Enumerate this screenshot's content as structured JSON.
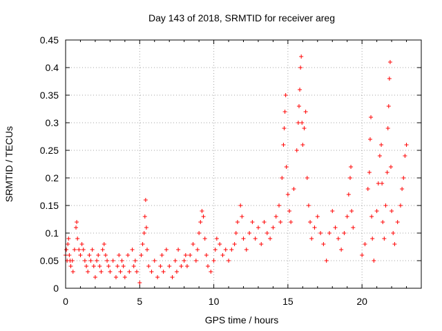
{
  "chart_data": {
    "type": "scatter",
    "title": "Day 143 of 2018, SRMTID for receiver areg",
    "xlabel": "GPS time / hours",
    "ylabel": "SRMTID / TECUs",
    "xlim": [
      0,
      24
    ],
    "ylim": [
      0,
      0.45
    ],
    "xticks": [
      0,
      5,
      10,
      15,
      20
    ],
    "xtick_labels": [
      "0",
      "5",
      "10",
      "15",
      "20"
    ],
    "yticks": [
      0,
      0.05,
      0.1,
      0.15,
      0.2,
      0.25,
      0.3,
      0.35,
      0.4,
      0.45
    ],
    "ytick_labels": [
      "0",
      "0.05",
      "0.1",
      "0.15",
      "0.2",
      "0.25",
      "0.3",
      "0.35",
      "0.4",
      "0.45"
    ],
    "grid": true,
    "marker": "+",
    "color": "#ff0000",
    "series": [
      {
        "name": "SRMTID",
        "points": [
          [
            0.0,
            0.06
          ],
          [
            0.05,
            0.07
          ],
          [
            0.1,
            0.05
          ],
          [
            0.15,
            0.08
          ],
          [
            0.2,
            0.09
          ],
          [
            0.25,
            0.06
          ],
          [
            0.3,
            0.05
          ],
          [
            0.35,
            0.04
          ],
          [
            0.45,
            0.05
          ],
          [
            0.5,
            0.03
          ],
          [
            0.6,
            0.07
          ],
          [
            0.7,
            0.11
          ],
          [
            0.75,
            0.12
          ],
          [
            0.8,
            0.09
          ],
          [
            0.9,
            0.07
          ],
          [
            1.0,
            0.06
          ],
          [
            1.1,
            0.08
          ],
          [
            1.2,
            0.07
          ],
          [
            1.3,
            0.05
          ],
          [
            1.4,
            0.04
          ],
          [
            1.5,
            0.03
          ],
          [
            1.6,
            0.06
          ],
          [
            1.7,
            0.05
          ],
          [
            1.8,
            0.07
          ],
          [
            1.9,
            0.04
          ],
          [
            2.0,
            0.02
          ],
          [
            2.1,
            0.05
          ],
          [
            2.2,
            0.06
          ],
          [
            2.3,
            0.04
          ],
          [
            2.4,
            0.03
          ],
          [
            2.5,
            0.07
          ],
          [
            2.6,
            0.08
          ],
          [
            2.7,
            0.06
          ],
          [
            2.8,
            0.05
          ],
          [
            2.9,
            0.04
          ],
          [
            3.0,
            0.03
          ],
          [
            3.2,
            0.05
          ],
          [
            3.4,
            0.02
          ],
          [
            3.5,
            0.04
          ],
          [
            3.6,
            0.06
          ],
          [
            3.7,
            0.03
          ],
          [
            3.8,
            0.05
          ],
          [
            3.9,
            0.04
          ],
          [
            4.0,
            0.02
          ],
          [
            4.2,
            0.06
          ],
          [
            4.3,
            0.03
          ],
          [
            4.5,
            0.07
          ],
          [
            4.6,
            0.04
          ],
          [
            4.7,
            0.05
          ],
          [
            4.8,
            0.03
          ],
          [
            5.0,
            0.01
          ],
          [
            5.1,
            0.06
          ],
          [
            5.2,
            0.08
          ],
          [
            5.3,
            0.1
          ],
          [
            5.35,
            0.13
          ],
          [
            5.4,
            0.16
          ],
          [
            5.45,
            0.11
          ],
          [
            5.5,
            0.07
          ],
          [
            5.6,
            0.04
          ],
          [
            5.8,
            0.03
          ],
          [
            6.0,
            0.05
          ],
          [
            6.2,
            0.02
          ],
          [
            6.4,
            0.04
          ],
          [
            6.5,
            0.06
          ],
          [
            6.6,
            0.03
          ],
          [
            6.8,
            0.07
          ],
          [
            7.0,
            0.04
          ],
          [
            7.2,
            0.02
          ],
          [
            7.4,
            0.05
          ],
          [
            7.5,
            0.03
          ],
          [
            7.6,
            0.07
          ],
          [
            7.8,
            0.04
          ],
          [
            8.0,
            0.05
          ],
          [
            8.1,
            0.06
          ],
          [
            8.2,
            0.04
          ],
          [
            8.4,
            0.06
          ],
          [
            8.6,
            0.08
          ],
          [
            8.8,
            0.05
          ],
          [
            8.9,
            0.07
          ],
          [
            9.0,
            0.1
          ],
          [
            9.1,
            0.12
          ],
          [
            9.2,
            0.14
          ],
          [
            9.3,
            0.13
          ],
          [
            9.4,
            0.09
          ],
          [
            9.5,
            0.06
          ],
          [
            9.6,
            0.04
          ],
          [
            9.8,
            0.03
          ],
          [
            10.0,
            0.05
          ],
          [
            10.1,
            0.07
          ],
          [
            10.2,
            0.09
          ],
          [
            10.4,
            0.08
          ],
          [
            10.6,
            0.06
          ],
          [
            10.8,
            0.07
          ],
          [
            11.0,
            0.05
          ],
          [
            11.2,
            0.07
          ],
          [
            11.4,
            0.08
          ],
          [
            11.5,
            0.1
          ],
          [
            11.6,
            0.12
          ],
          [
            11.8,
            0.15
          ],
          [
            11.9,
            0.13
          ],
          [
            12.0,
            0.09
          ],
          [
            12.2,
            0.07
          ],
          [
            12.4,
            0.1
          ],
          [
            12.6,
            0.12
          ],
          [
            12.8,
            0.09
          ],
          [
            13.0,
            0.11
          ],
          [
            13.2,
            0.08
          ],
          [
            13.4,
            0.12
          ],
          [
            13.6,
            0.1
          ],
          [
            13.8,
            0.09
          ],
          [
            14.0,
            0.11
          ],
          [
            14.2,
            0.13
          ],
          [
            14.4,
            0.15
          ],
          [
            14.5,
            0.12
          ],
          [
            14.6,
            0.2
          ],
          [
            14.7,
            0.26
          ],
          [
            14.75,
            0.29
          ],
          [
            14.8,
            0.32
          ],
          [
            14.85,
            0.35
          ],
          [
            14.9,
            0.22
          ],
          [
            15.0,
            0.17
          ],
          [
            15.1,
            0.14
          ],
          [
            15.2,
            0.12
          ],
          [
            15.4,
            0.18
          ],
          [
            15.6,
            0.25
          ],
          [
            15.7,
            0.3
          ],
          [
            15.75,
            0.33
          ],
          [
            15.8,
            0.36
          ],
          [
            15.85,
            0.4
          ],
          [
            15.9,
            0.42
          ],
          [
            15.95,
            0.3
          ],
          [
            16.0,
            0.26
          ],
          [
            16.1,
            0.29
          ],
          [
            16.2,
            0.32
          ],
          [
            16.3,
            0.2
          ],
          [
            16.4,
            0.15
          ],
          [
            16.5,
            0.12
          ],
          [
            16.6,
            0.09
          ],
          [
            16.8,
            0.11
          ],
          [
            17.0,
            0.13
          ],
          [
            17.2,
            0.1
          ],
          [
            17.4,
            0.08
          ],
          [
            17.6,
            0.05
          ],
          [
            17.8,
            0.1
          ],
          [
            18.0,
            0.14
          ],
          [
            18.2,
            0.11
          ],
          [
            18.4,
            0.09
          ],
          [
            18.6,
            0.07
          ],
          [
            18.8,
            0.1
          ],
          [
            19.0,
            0.13
          ],
          [
            19.1,
            0.17
          ],
          [
            19.2,
            0.2
          ],
          [
            19.25,
            0.22
          ],
          [
            19.3,
            0.14
          ],
          [
            19.4,
            0.11
          ],
          [
            20.0,
            0.06
          ],
          [
            20.2,
            0.08
          ],
          [
            20.4,
            0.18
          ],
          [
            20.5,
            0.21
          ],
          [
            20.55,
            0.27
          ],
          [
            20.6,
            0.31
          ],
          [
            20.65,
            0.13
          ],
          [
            20.7,
            0.09
          ],
          [
            20.8,
            0.05
          ],
          [
            21.0,
            0.14
          ],
          [
            21.1,
            0.19
          ],
          [
            21.2,
            0.24
          ],
          [
            21.3,
            0.26
          ],
          [
            21.35,
            0.19
          ],
          [
            21.4,
            0.12
          ],
          [
            21.5,
            0.09
          ],
          [
            21.6,
            0.15
          ],
          [
            21.7,
            0.21
          ],
          [
            21.75,
            0.29
          ],
          [
            21.8,
            0.33
          ],
          [
            21.85,
            0.38
          ],
          [
            21.9,
            0.41
          ],
          [
            21.95,
            0.22
          ],
          [
            22.0,
            0.14
          ],
          [
            22.1,
            0.1
          ],
          [
            22.2,
            0.08
          ],
          [
            22.4,
            0.12
          ],
          [
            22.6,
            0.15
          ],
          [
            22.7,
            0.18
          ],
          [
            22.8,
            0.2
          ],
          [
            22.9,
            0.24
          ],
          [
            23.0,
            0.26
          ]
        ]
      }
    ]
  }
}
